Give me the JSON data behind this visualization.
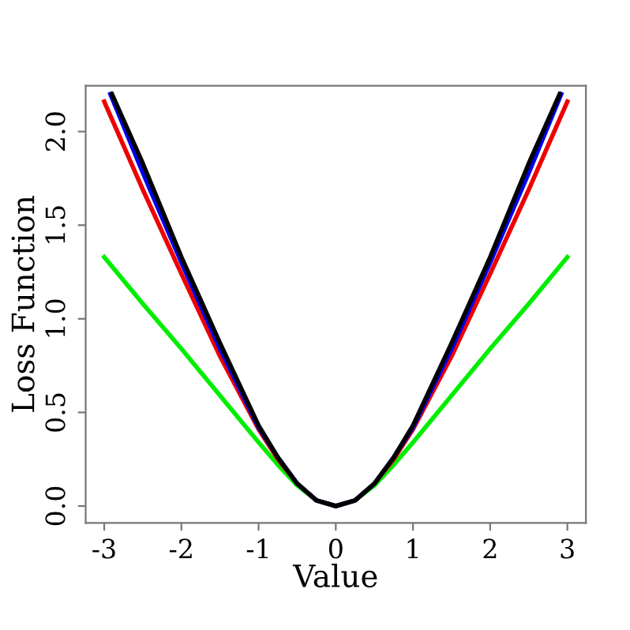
{
  "chart_data": {
    "type": "line",
    "xlabel": "Value",
    "ylabel": "Loss Function",
    "xlim": [
      -3.24,
      3.24
    ],
    "ylim": [
      -0.09,
      2.245
    ],
    "xticks": [
      {
        "value": -3,
        "label": "-3"
      },
      {
        "value": -2,
        "label": "-2"
      },
      {
        "value": -1,
        "label": "-1"
      },
      0,
      1,
      2,
      3
    ],
    "yticks": [
      {
        "value": 0,
        "label": "0.0"
      },
      {
        "value": 0.5,
        "label": "0.5"
      },
      {
        "value": 1,
        "label": "1.0"
      },
      {
        "value": 1.5,
        "label": "1.5"
      },
      {
        "value": 2,
        "label": "2.0"
      }
    ],
    "grid": false,
    "legend": false,
    "marker": "none",
    "line_style": "solid",
    "series": [
      {
        "color": "#00ee00",
        "x": [
          -3,
          -2.5,
          -2,
          -1.5,
          -1,
          -0.75,
          -0.5,
          -0.25,
          0,
          0.25,
          0.5,
          0.75,
          1,
          1.5,
          2,
          2.5,
          3
        ],
        "values": [
          1.33,
          1.08,
          0.84,
          0.59,
          0.34,
          0.22,
          0.11,
          0.03,
          0,
          0.03,
          0.11,
          0.22,
          0.34,
          0.59,
          0.84,
          1.08,
          1.33
        ]
      },
      {
        "color": "#ee0000",
        "x": [
          -3,
          -2.5,
          -2,
          -1.5,
          -1,
          -0.75,
          -0.5,
          -0.25,
          0,
          0.25,
          0.5,
          0.75,
          1,
          1.5,
          2,
          2.5,
          3
        ],
        "values": [
          2.16,
          1.69,
          1.24,
          0.8,
          0.41,
          0.25,
          0.12,
          0.03,
          0,
          0.03,
          0.12,
          0.25,
          0.41,
          0.8,
          1.24,
          1.69,
          2.16
        ]
      },
      {
        "color": "#0000ee",
        "x": [
          -2.92,
          -2.5,
          -2,
          -1.5,
          -1,
          -0.75,
          -0.5,
          -0.25,
          0,
          0.25,
          0.5,
          0.75,
          1,
          1.5,
          2,
          2.5,
          2.92
        ],
        "values": [
          2.2,
          1.78,
          1.3,
          0.84,
          0.42,
          0.26,
          0.12,
          0.03,
          0,
          0.03,
          0.12,
          0.26,
          0.42,
          0.84,
          1.3,
          1.78,
          2.2
        ]
      },
      {
        "color": "#000000",
        "x": [
          -2.9,
          -2.5,
          -2,
          -1.5,
          -1,
          -0.75,
          -0.5,
          -0.25,
          0,
          0.25,
          0.5,
          0.75,
          1,
          1.5,
          2,
          2.5,
          2.9
        ],
        "values": [
          2.2,
          1.83,
          1.33,
          0.87,
          0.43,
          0.26,
          0.12,
          0.03,
          0,
          0.03,
          0.12,
          0.26,
          0.43,
          0.87,
          1.33,
          1.83,
          2.2
        ]
      }
    ]
  }
}
